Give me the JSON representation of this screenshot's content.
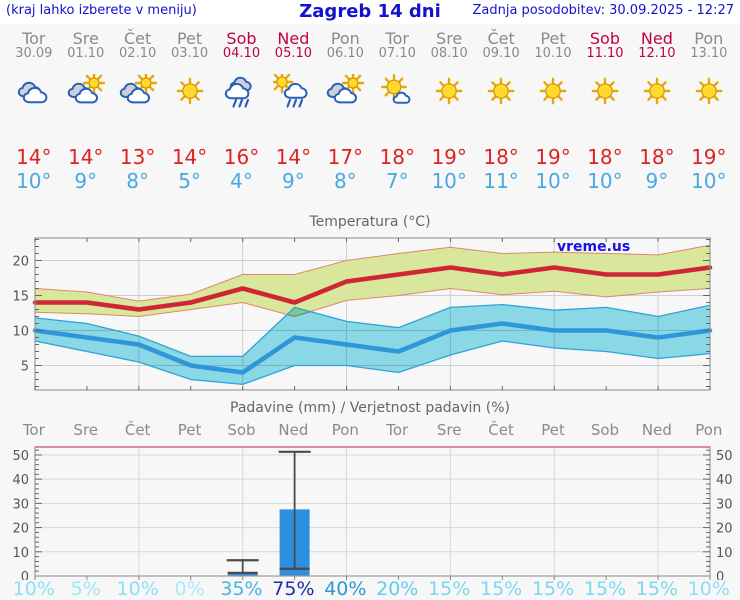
{
  "header": {
    "left_note": "(kraj lahko izberete v meniju)",
    "title": "Zagreb 14 dni",
    "updated": "Zadnja posodobitev: 30.09.2025 - 12:27"
  },
  "days": [
    {
      "name": "Tor",
      "date": "30.09",
      "weekend": false,
      "icon": "cloudy",
      "tmax": 14,
      "tmin": 10,
      "prob": "10%",
      "prob_color": "#8ddff4"
    },
    {
      "name": "Sre",
      "date": "01.10",
      "weekend": false,
      "icon": "partly-sunny",
      "tmax": 14,
      "tmin": 9,
      "prob": "5%",
      "prob_color": "#a0e5f7"
    },
    {
      "name": "Čet",
      "date": "02.10",
      "weekend": false,
      "icon": "partly-sunny",
      "tmax": 13,
      "tmin": 8,
      "prob": "10%",
      "prob_color": "#8ddff4"
    },
    {
      "name": "Pet",
      "date": "03.10",
      "weekend": false,
      "icon": "sunny",
      "tmax": 14,
      "tmin": 5,
      "prob": "0%",
      "prob_color": "#aceaf8"
    },
    {
      "name": "Sob",
      "date": "04.10",
      "weekend": true,
      "icon": "rain",
      "tmax": 16,
      "tmin": 4,
      "prob": "35%",
      "prob_color": "#46b4e5"
    },
    {
      "name": "Ned",
      "date": "05.10",
      "weekend": true,
      "icon": "sun-showers",
      "tmax": 14,
      "tmin": 9,
      "prob": "75%",
      "prob_color": "#1e2fa6"
    },
    {
      "name": "Pon",
      "date": "06.10",
      "weekend": false,
      "icon": "partly-sunny",
      "tmax": 17,
      "tmin": 8,
      "prob": "40%",
      "prob_color": "#2f96d6"
    },
    {
      "name": "Tor",
      "date": "07.10",
      "weekend": false,
      "icon": "mostly-sunny",
      "tmax": 18,
      "tmin": 7,
      "prob": "20%",
      "prob_color": "#62ccee"
    },
    {
      "name": "Sre",
      "date": "08.10",
      "weekend": false,
      "icon": "sunny",
      "tmax": 19,
      "tmin": 10,
      "prob": "15%",
      "prob_color": "#7cd7f1"
    },
    {
      "name": "Čet",
      "date": "09.10",
      "weekend": false,
      "icon": "sunny",
      "tmax": 18,
      "tmin": 11,
      "prob": "15%",
      "prob_color": "#7cd7f1"
    },
    {
      "name": "Pet",
      "date": "10.10",
      "weekend": false,
      "icon": "sunny",
      "tmax": 19,
      "tmin": 10,
      "prob": "15%",
      "prob_color": "#7cd7f1"
    },
    {
      "name": "Sob",
      "date": "11.10",
      "weekend": true,
      "icon": "sunny",
      "tmax": 18,
      "tmin": 10,
      "prob": "15%",
      "prob_color": "#7cd7f1"
    },
    {
      "name": "Ned",
      "date": "12.10",
      "weekend": true,
      "icon": "sunny",
      "tmax": 18,
      "tmin": 9,
      "prob": "15%",
      "prob_color": "#7cd7f1"
    },
    {
      "name": "Pon",
      "date": "13.10",
      "weekend": false,
      "icon": "sunny",
      "tmax": 19,
      "tmin": 10,
      "prob": "10%",
      "prob_color": "#8ddff4"
    }
  ],
  "chart_data": [
    {
      "type": "line",
      "title": "Temperatura (°C)",
      "watermark": "vreme.us",
      "categories": [
        "Tor",
        "Sre",
        "Čet",
        "Pet",
        "Sob",
        "Ned",
        "Pon",
        "Tor",
        "Sre",
        "Čet",
        "Pet",
        "Sob",
        "Ned",
        "Pon"
      ],
      "yticks": [
        5,
        10,
        15,
        20
      ],
      "ylim": [
        1.5,
        23.2
      ],
      "grid": true,
      "series": [
        {
          "name": "max_band_upper",
          "values": [
            16,
            15.5,
            14.2,
            15.2,
            18,
            18,
            20,
            21,
            21.9,
            21,
            21.2,
            21,
            20.8,
            22.2
          ]
        },
        {
          "name": "max",
          "values": [
            14,
            14,
            13,
            14,
            16,
            14,
            17,
            18,
            19,
            18,
            19,
            18,
            18,
            19
          ]
        },
        {
          "name": "max_band_lower",
          "values": [
            12.6,
            12.4,
            12,
            13,
            14,
            12,
            14.3,
            15,
            16,
            15.1,
            15.6,
            14.8,
            15.5,
            16
          ]
        },
        {
          "name": "min_band_upper",
          "values": [
            11.8,
            11,
            9.2,
            6.3,
            6.3,
            13.3,
            11.3,
            10.4,
            13.3,
            13.7,
            12.9,
            13.3,
            12,
            13.6
          ]
        },
        {
          "name": "min",
          "values": [
            10,
            9,
            8,
            5,
            4,
            9,
            8,
            7,
            10,
            11,
            10,
            10,
            9,
            10
          ]
        },
        {
          "name": "min_band_lower",
          "values": [
            8.5,
            7,
            5.5,
            3,
            2.3,
            5,
            5,
            4,
            6.5,
            8.5,
            7.5,
            7,
            6,
            6.7
          ]
        }
      ]
    },
    {
      "type": "bar",
      "title": "Padavine (mm) / Verjetnost padavin (%)",
      "categories": [
        "Tor",
        "Sre",
        "Čet",
        "Pet",
        "Sob",
        "Ned",
        "Pon",
        "Tor",
        "Sre",
        "Čet",
        "Pet",
        "Sob",
        "Ned",
        "Pon"
      ],
      "values": [
        0,
        0,
        0,
        0,
        1.3,
        27.5,
        0,
        0,
        0,
        0,
        0,
        0,
        0,
        0
      ],
      "whiskers": [
        {
          "day_index": 4,
          "low": 1.3,
          "high": 6.5
        },
        {
          "day_index": 5,
          "low": 3,
          "high": 51.3
        }
      ],
      "probabilities_pct": [
        10,
        5,
        10,
        0,
        35,
        75,
        40,
        20,
        15,
        15,
        15,
        15,
        15,
        10
      ],
      "yticks": [
        0,
        10,
        20,
        30,
        40,
        50
      ],
      "ylim": [
        0,
        53.3
      ],
      "grid": true,
      "legend": "none"
    }
  ],
  "colors": {
    "accent_blue": "#1212cc",
    "weekend": "#c00045",
    "tmax_red": "#dd2222",
    "tmin_blue": "#4aa8e0",
    "max_band": "#d9e79c",
    "max_band_edge": "#e2856a",
    "max_line": "#d02535",
    "min_band": "#8edeed",
    "min_band_edge": "#2ea3d8",
    "min_line": "#2f97d9",
    "bar_blue": "#2c8fe0",
    "precip_top_border": "#d4708a"
  }
}
